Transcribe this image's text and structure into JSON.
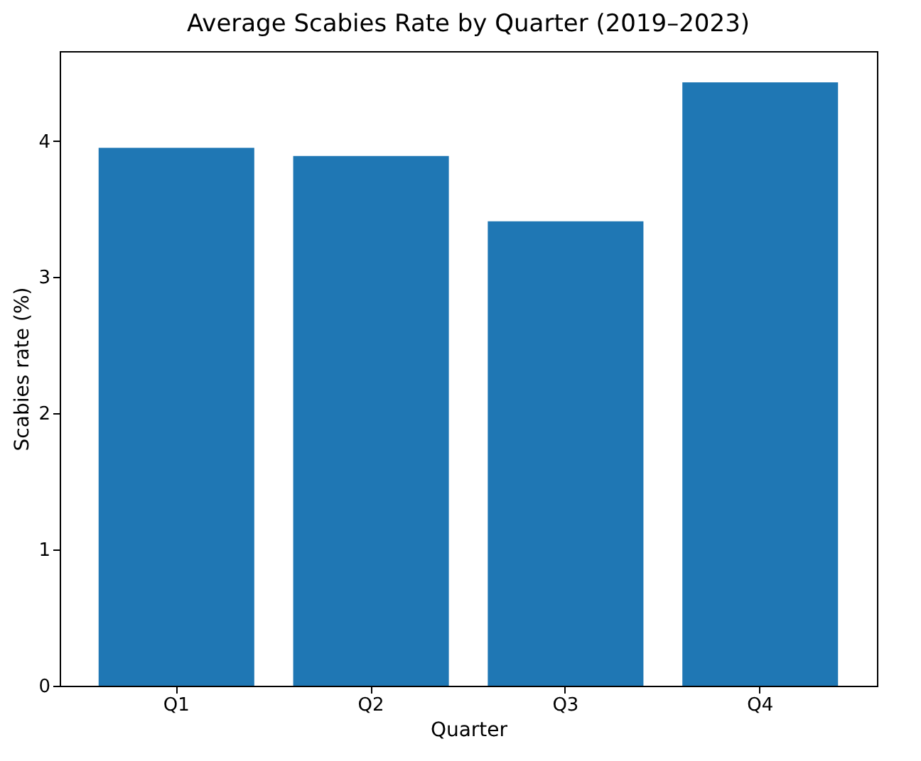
{
  "chart_data": {
    "type": "bar",
    "title": "Average Scabies Rate by Quarter (2019–2023)",
    "xlabel": "Quarter",
    "ylabel": "Scabies rate (%)",
    "categories": [
      "Q1",
      "Q2",
      "Q3",
      "Q4"
    ],
    "values": [
      3.95,
      3.89,
      3.41,
      4.43
    ],
    "color": "#1f77b4",
    "ylim": [
      0,
      4.66
    ],
    "yticks": [
      0,
      1,
      2,
      3,
      4
    ],
    "grid": false
  }
}
